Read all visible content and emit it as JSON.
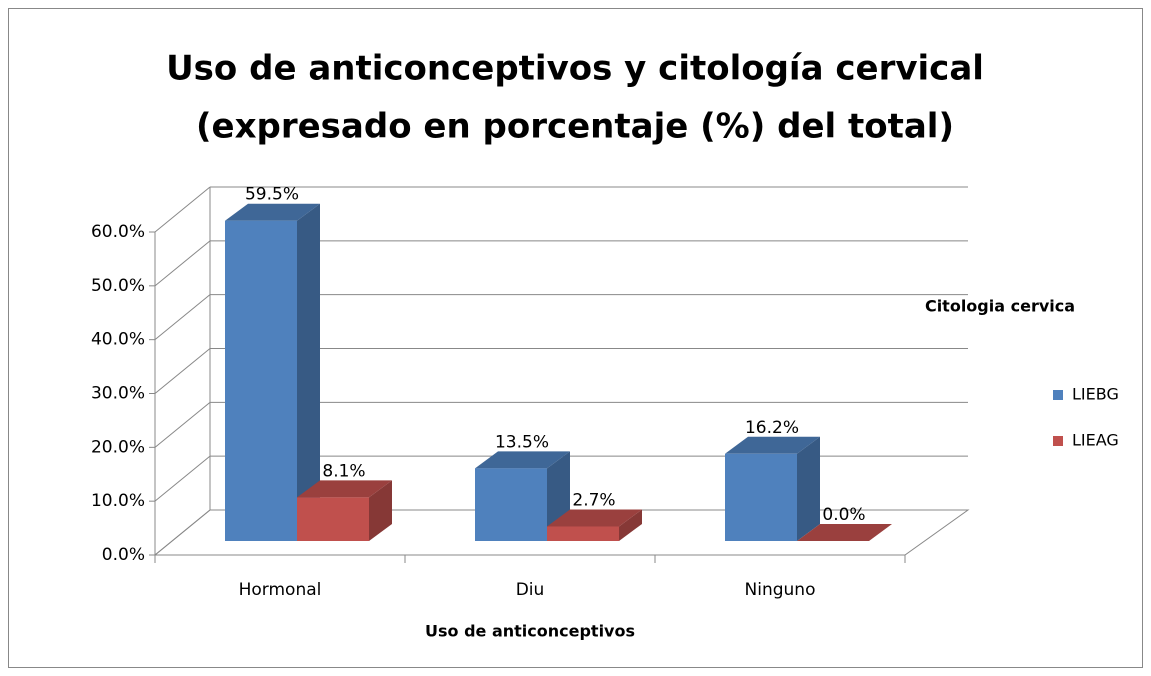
{
  "chart_data": {
    "type": "bar3d",
    "title": [
      "Uso de anticonceptivos y citología cervical",
      "(expresado en porcentaje (%) del total)"
    ],
    "x_label": "Uso de anticonceptivos",
    "legend_title": "Citologia cervica",
    "legend_position": "right",
    "categories": [
      "Hormonal",
      "Diu",
      "Ninguno"
    ],
    "series": [
      {
        "name": "LIEBG",
        "color": "#4f81bd",
        "values": [
          59.5,
          13.5,
          16.2
        ],
        "value_labels": [
          "59.5%",
          "13.5%",
          "16.2%"
        ]
      },
      {
        "name": "LIEAG",
        "color": "#c0504d",
        "values": [
          8.1,
          2.7,
          0.0
        ],
        "value_labels": [
          "8.1%",
          "2.7%",
          "0.0%"
        ]
      }
    ],
    "ylim": [
      0,
      60
    ],
    "yticks": [
      {
        "value": 0,
        "label": "0.0%"
      },
      {
        "value": 10,
        "label": "10.0%"
      },
      {
        "value": 20,
        "label": "20.0%"
      },
      {
        "value": 30,
        "label": "30.0%"
      },
      {
        "value": 40,
        "label": "40.0%"
      },
      {
        "value": 50,
        "label": "50.0%"
      },
      {
        "value": 60,
        "label": "60.0%"
      }
    ],
    "grid": true
  }
}
